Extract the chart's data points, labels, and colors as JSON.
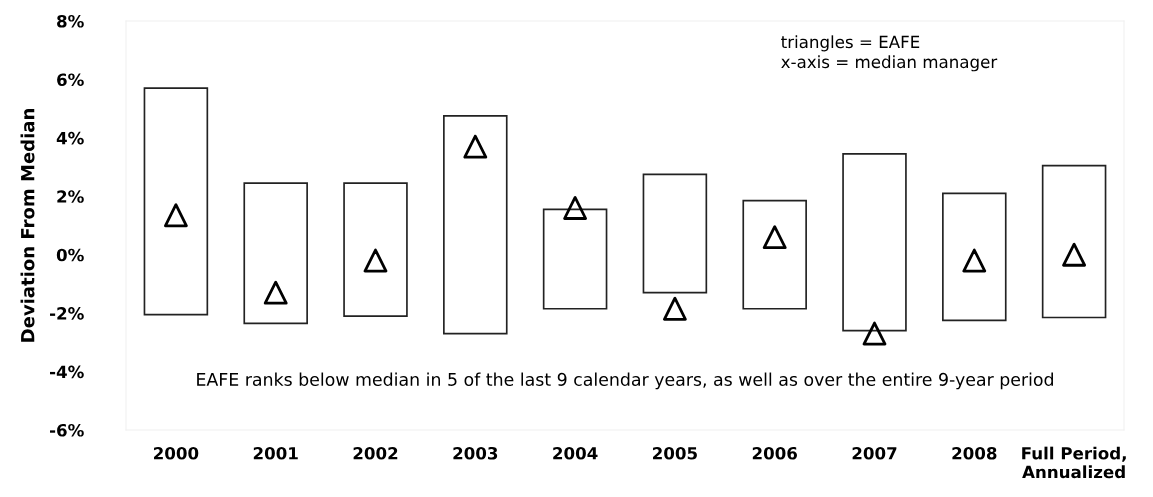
{
  "chart_data": {
    "type": "bar",
    "ylabel": "Deviation From Median",
    "categories": [
      "2000",
      "2001",
      "2002",
      "2003",
      "2004",
      "2005",
      "2006",
      "2007",
      "2008",
      "Full Period,\nAnnualized"
    ],
    "series": [
      {
        "color": "#ffffff",
        "base": [
          -2.05,
          -2.35,
          -2.1,
          -2.7,
          -1.85,
          -1.3,
          -1.85,
          -2.6,
          -2.25,
          -2.15
        ],
        "values": [
          7.75,
          4.8,
          4.55,
          7.45,
          3.4,
          4.05,
          3.7,
          6.05,
          4.35,
          5.2
        ]
      },
      {
        "type": "scatter",
        "color": "#000000",
        "marker": "triangle",
        "values": [
          1.35,
          -1.3,
          -0.2,
          3.7,
          1.6,
          -1.85,
          0.6,
          -2.7,
          -0.2,
          0.0
        ]
      }
    ],
    "ylim": [
      -6,
      8
    ],
    "yticks": [
      {
        "value": -6,
        "label": "-6%"
      },
      {
        "value": -4,
        "label": "-4%"
      },
      {
        "value": -2,
        "label": "-2%"
      },
      {
        "value": 0,
        "label": "0%"
      },
      {
        "value": 2,
        "label": "2%"
      },
      {
        "value": 4,
        "label": "4%"
      },
      {
        "value": 6,
        "label": "6%"
      },
      {
        "value": 8,
        "label": "8%"
      }
    ],
    "grid": false,
    "annotations": [
      "triangles = EAFE\nx-axis = median manager",
      "EAFE ranks below median in 5 of the last 9 calendar years, as well as over the entire 9-year period"
    ]
  }
}
